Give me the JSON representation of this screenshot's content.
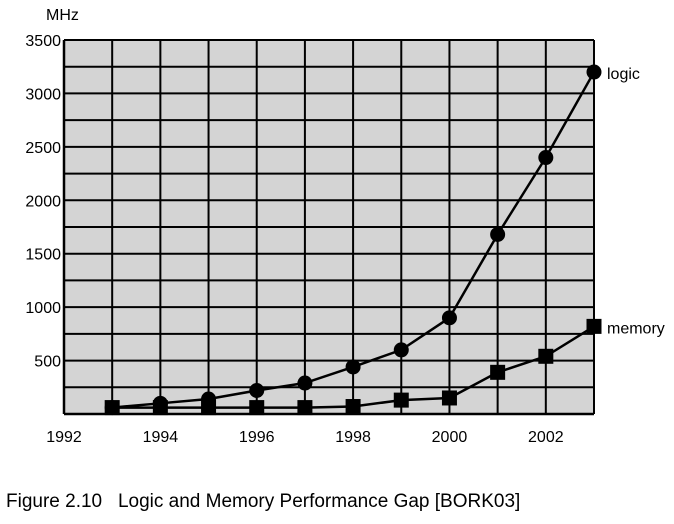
{
  "chart_data": {
    "type": "line",
    "title": "",
    "xlabel": "",
    "ylabel": "MHz",
    "xlim": [
      1992,
      2003
    ],
    "ylim": [
      0,
      3500
    ],
    "x_ticks": [
      1992,
      1994,
      1996,
      1998,
      2000,
      2002
    ],
    "y_ticks": [
      500,
      1000,
      1500,
      2000,
      2500,
      3000,
      3500
    ],
    "grid": true,
    "background": "#d4d4d4",
    "x": [
      1993,
      1994,
      1995,
      1996,
      1997,
      1998,
      1999,
      2000,
      2001,
      2002,
      2003
    ],
    "series": [
      {
        "name": "logic",
        "marker": "circle",
        "values": [
          60,
          100,
          140,
          220,
          290,
          440,
          600,
          900,
          1680,
          2400,
          3200
        ]
      },
      {
        "name": "memory",
        "marker": "square",
        "values": [
          60,
          60,
          60,
          60,
          60,
          70,
          130,
          150,
          390,
          540,
          820
        ]
      }
    ]
  },
  "caption": "Figure 2.10   Logic and Memory Performance Gap [BORK03]"
}
